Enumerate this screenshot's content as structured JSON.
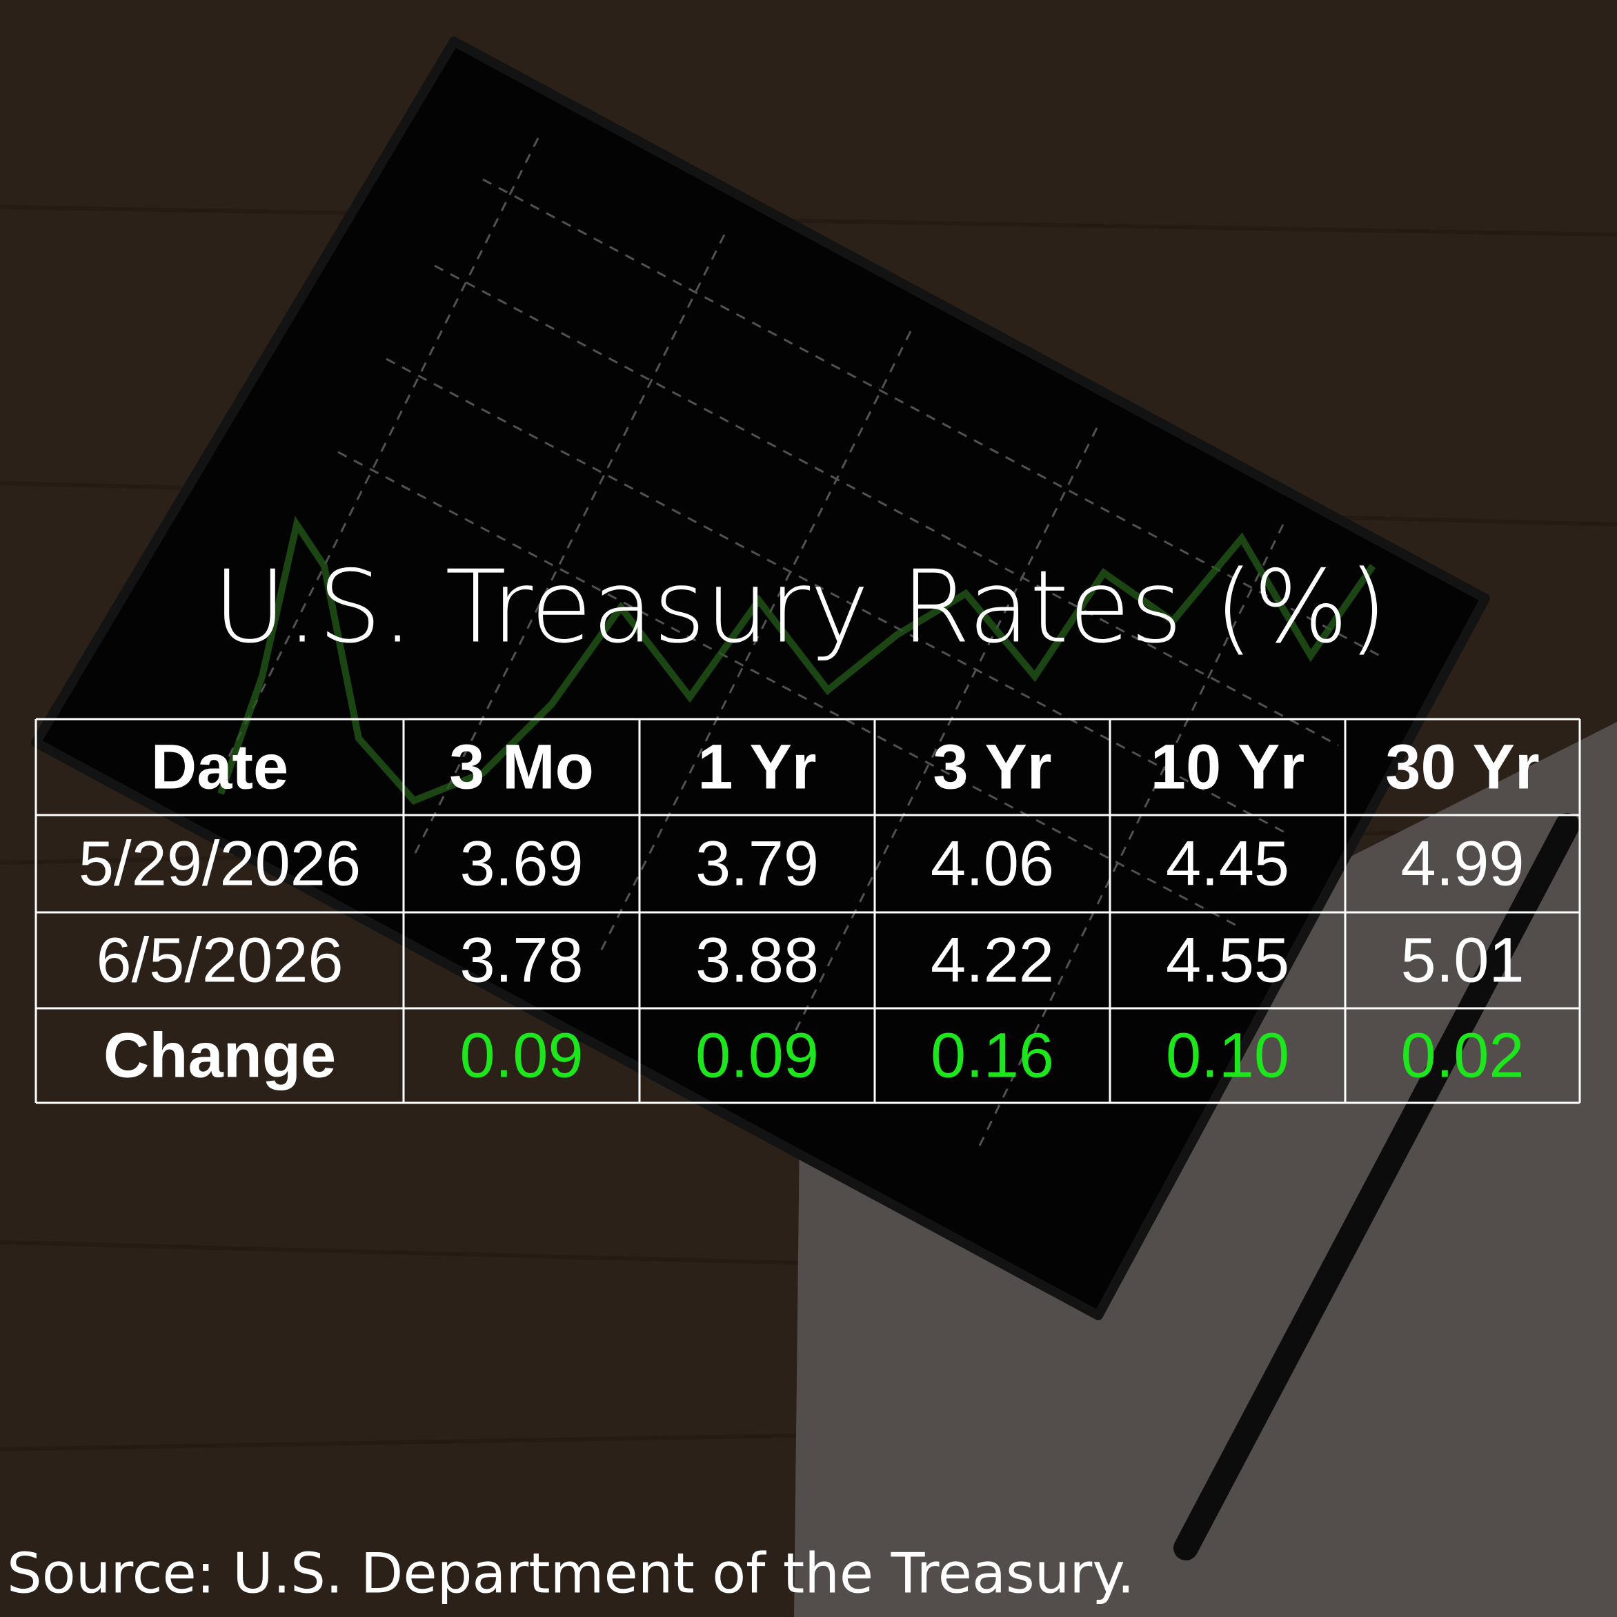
{
  "title": "U.S. Treasury Rates (%)",
  "table": {
    "header": [
      "Date",
      "3 Mo",
      "1 Yr",
      "3 Yr",
      "10 Yr",
      "30 Yr"
    ],
    "rows": [
      [
        "5/29/2026",
        "3.69",
        "3.79",
        "4.06",
        "4.45",
        "4.99"
      ],
      [
        "6/5/2026",
        "3.78",
        "3.88",
        "4.22",
        "4.55",
        "5.01"
      ],
      [
        "Change",
        "0.09",
        "0.09",
        "0.16",
        "0.10",
        "0.02"
      ]
    ]
  },
  "source": "Source: U.S. Department of the Treasury."
}
